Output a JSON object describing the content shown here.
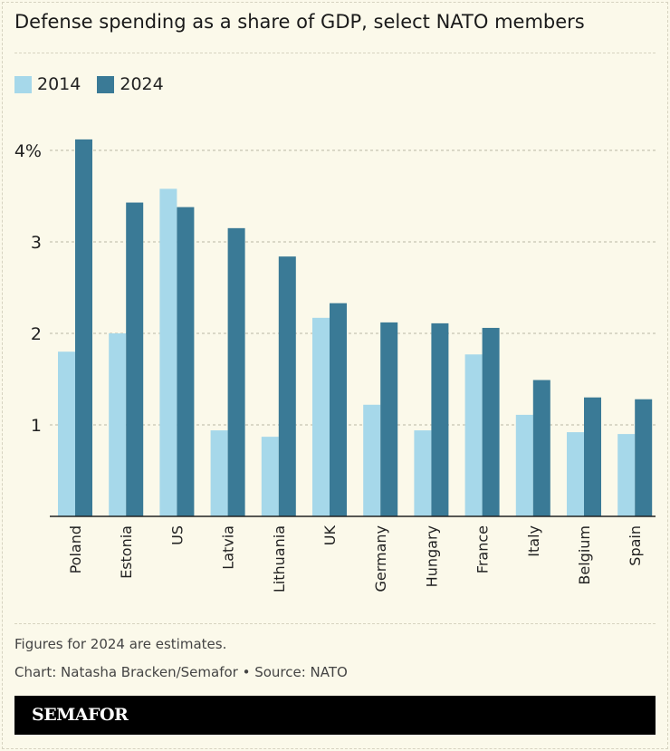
{
  "title": "Defense spending as a share of GDP, select NATO members",
  "chart_data": {
    "type": "bar",
    "title": "Defense spending as a share of GDP, select NATO members",
    "categories": [
      "Poland",
      "Estonia",
      "US",
      "Latvia",
      "Lithuania",
      "UK",
      "Germany",
      "Hungary",
      "France",
      "Italy",
      "Belgium",
      "Spain"
    ],
    "series": [
      {
        "name": "2014",
        "color": "#a6d8ea",
        "values": [
          1.8,
          2.0,
          3.58,
          0.94,
          0.87,
          2.17,
          1.22,
          0.94,
          1.77,
          1.11,
          0.92,
          0.9
        ]
      },
      {
        "name": "2024",
        "color": "#3a7a96",
        "values": [
          4.12,
          3.43,
          3.38,
          3.15,
          2.84,
          2.33,
          2.12,
          2.11,
          2.06,
          1.49,
          1.3,
          1.28
        ]
      }
    ],
    "yticks": [
      {
        "value": 1,
        "label": "1"
      },
      {
        "value": 2,
        "label": "2"
      },
      {
        "value": 3,
        "label": "3"
      },
      {
        "value": 4,
        "label": "4%"
      }
    ],
    "ylim": [
      0,
      4.2
    ],
    "grid": true,
    "legend_placement": "top-left"
  },
  "notes": {
    "estimate": "Figures for 2024 are estimates.",
    "credit": "Chart: Natasha Bracken/Semafor • Source: NATO"
  },
  "brand": "SEMAFOR"
}
